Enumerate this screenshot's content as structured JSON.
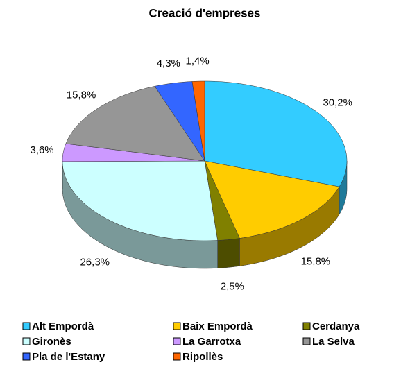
{
  "chart_data": {
    "type": "pie3d",
    "title": "Creació d'empreses",
    "categories": [
      "Alt Empordà",
      "Baix Empordà",
      "Cerdanya",
      "Gironès",
      "La Garrotxa",
      "La Selva",
      "Pla de l'Estany",
      "Ripollès"
    ],
    "values": [
      30.2,
      15.8,
      2.5,
      26.3,
      3.6,
      15.8,
      4.3,
      1.4
    ],
    "value_labels": [
      "30,2%",
      "15,8%",
      "2,5%",
      "26,3%",
      "3,6%",
      "15,8%",
      "4,3%",
      "1,4%"
    ],
    "colors": [
      "#33ccff",
      "#ffcc00",
      "#808000",
      "#ccffff",
      "#cc99ff",
      "#969696",
      "#3366ff",
      "#ff6600"
    ],
    "legend": "bottom"
  }
}
